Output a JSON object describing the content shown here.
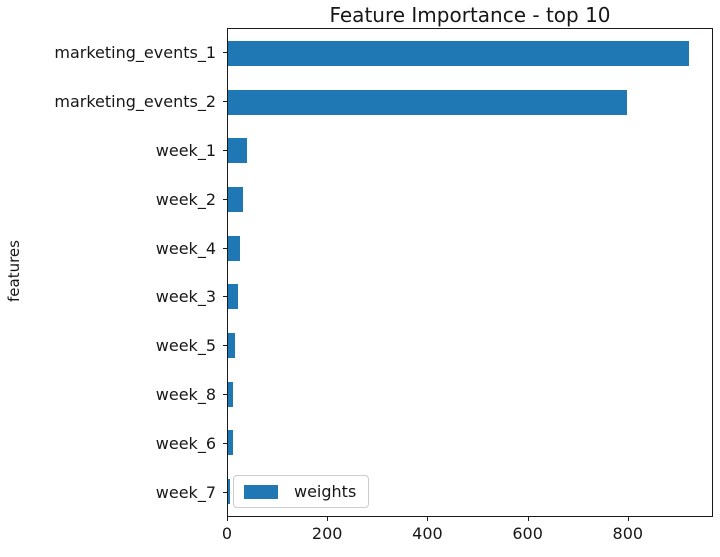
{
  "chart_data": {
    "type": "bar",
    "orientation": "horizontal",
    "title": "Feature Importance - top 10",
    "xlabel": "",
    "ylabel": "features",
    "categories": [
      "marketing_events_1",
      "marketing_events_2",
      "week_1",
      "week_2",
      "week_4",
      "week_3",
      "week_5",
      "week_8",
      "week_6",
      "week_7"
    ],
    "series": [
      {
        "name": "weights",
        "values": [
          924,
          800,
          38,
          30,
          25,
          20,
          15,
          11,
          10,
          4
        ]
      }
    ],
    "xticks": [
      0,
      200,
      400,
      600,
      800
    ],
    "xlim": [
      0,
      970
    ],
    "grid": false,
    "legend": {
      "entries": [
        "weights"
      ],
      "position": "lower left"
    }
  },
  "colors": {
    "bar": "#1f77b4",
    "axis": "#1a1a1a",
    "background": "#ffffff",
    "legend_border": "#cccccc"
  }
}
